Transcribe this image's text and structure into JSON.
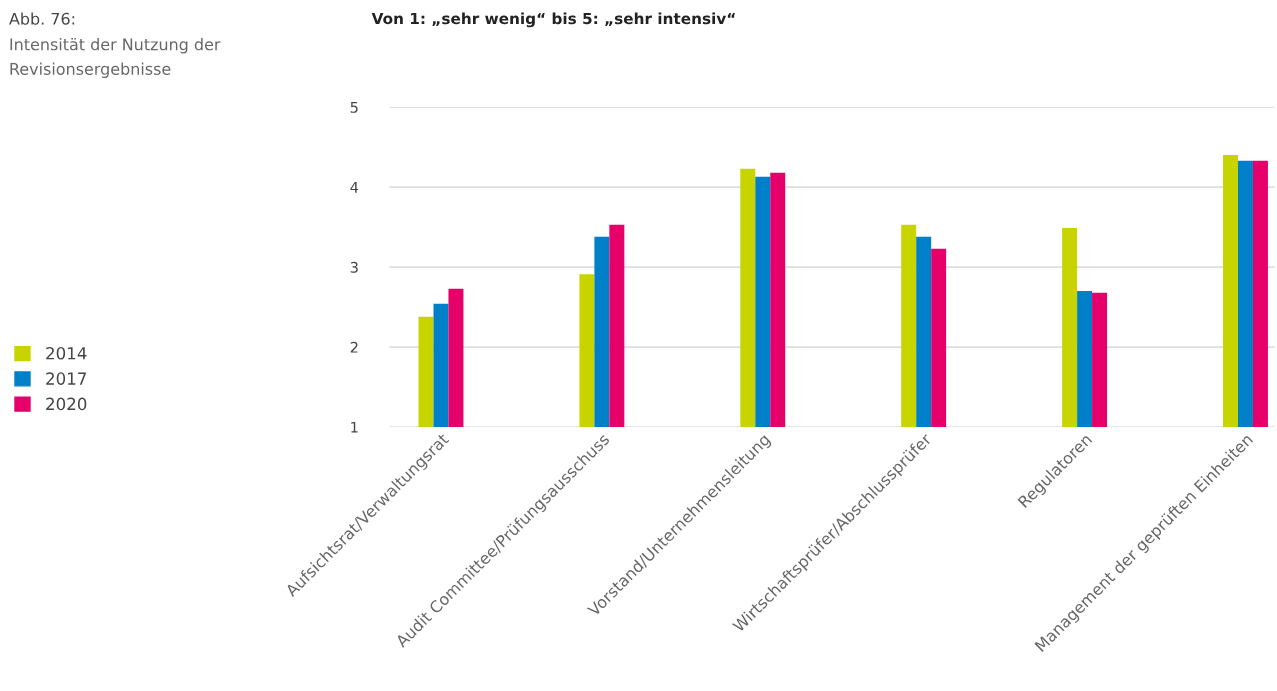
{
  "chart_data": {
    "type": "bar",
    "title": "Abb. 76:",
    "subtitle": "Intensität der Nutzung der\nRevisionsergebnisse",
    "annotations": [
      "Von 1: „sehr wenig“ bis 5: „sehr intensiv“"
    ],
    "categories": [
      "Aufsichtsrat/Verwaltungsrat",
      "Audit Committee/Prüfungsausschuss",
      "Vorstand/Unternehmensleitung",
      "Wirtschaftsprüfer/Abschlussprüfer",
      "Regulatoren",
      "Management der geprüften Einheiten"
    ],
    "series": [
      {
        "name": "2014",
        "color": "#c8d400",
        "values": [
          2.38,
          2.91,
          4.23,
          3.53,
          3.49,
          4.4
        ]
      },
      {
        "name": "2017",
        "color": "#0080c8",
        "values": [
          2.54,
          3.38,
          4.13,
          3.38,
          2.7,
          4.33
        ]
      },
      {
        "name": "2020",
        "color": "#e5006a",
        "values": [
          2.73,
          3.53,
          4.18,
          3.23,
          2.68,
          4.33
        ]
      }
    ],
    "ylim": [
      1,
      5
    ],
    "yticks": [
      1,
      2,
      3,
      4,
      5
    ],
    "grid": "y",
    "legend": "left"
  }
}
